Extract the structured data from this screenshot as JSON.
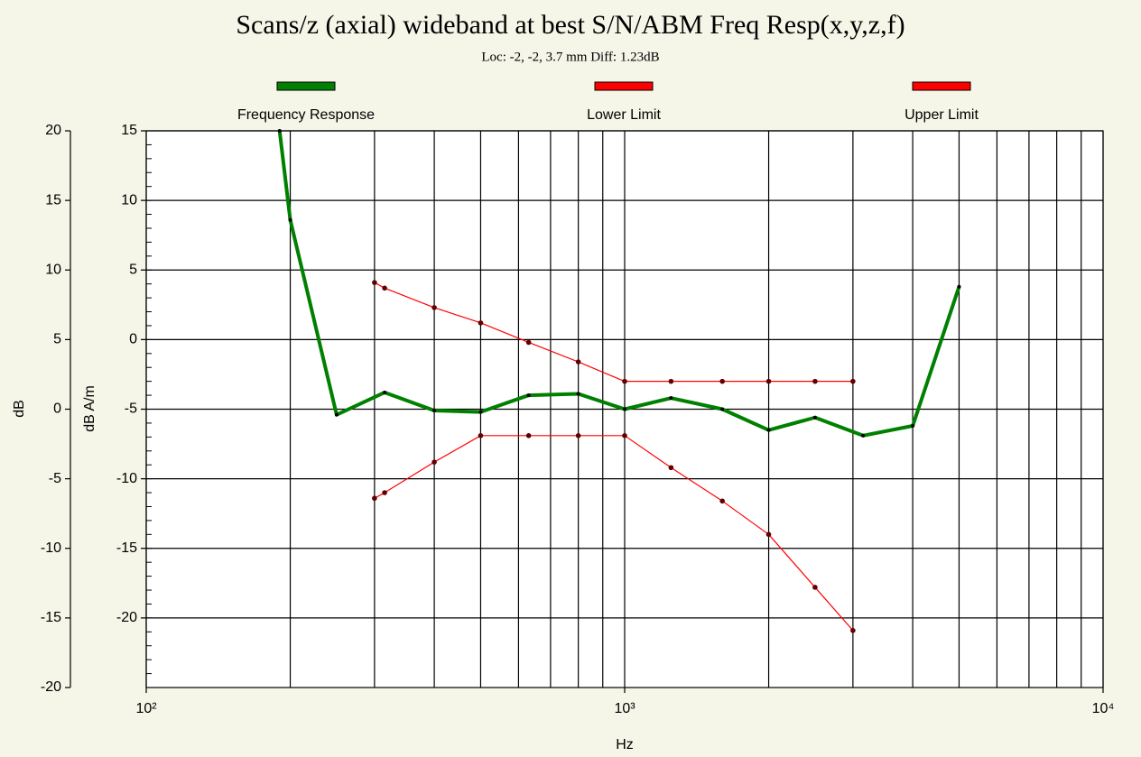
{
  "chart_data": {
    "type": "line",
    "title": "Scans/z (axial) wideband at best S/N/ABM Freq Resp(x,y,z,f)",
    "subtitle": "Loc: -2, -2, 3.7 mm Diff: 1.23dB",
    "xlabel": "Hz",
    "ylabel": "dB",
    "y2label": "dB A/m",
    "log_x": true,
    "grid": true,
    "legend": "top",
    "xlim": [
      100,
      10000
    ],
    "xticks": [
      {
        "value": 100,
        "label": "10²"
      },
      {
        "value": 1000,
        "label": "10³"
      },
      {
        "value": 10000,
        "label": "10⁴"
      }
    ],
    "ylim": [
      -20,
      20
    ],
    "yticks": [
      20,
      15,
      10,
      5,
      0,
      -5,
      -10,
      -15,
      -20
    ],
    "y2lim": [
      -25,
      15
    ],
    "y2ticks": [
      15,
      10,
      5,
      0,
      -5,
      -10,
      -15,
      -20
    ],
    "series": [
      {
        "name": "Frequency Response",
        "color": "#008000",
        "axis": "y2",
        "x": [
          190,
          200,
          250,
          315,
          400,
          500,
          630,
          800,
          1000,
          1250,
          1600,
          2000,
          2500,
          3150,
          4000,
          5000
        ],
        "values": [
          15,
          8.6,
          -5.4,
          -3.8,
          -5.1,
          -5.2,
          -4.0,
          -3.9,
          -5.0,
          -4.2,
          -5.0,
          -6.5,
          -5.6,
          -6.9,
          -6.2,
          3.8
        ]
      },
      {
        "name": "Lower Limit",
        "color": "#ff0000",
        "axis": "y2",
        "x": [
          300,
          315,
          400,
          500,
          630,
          800,
          1000,
          1250,
          1600,
          2000,
          2500,
          3000
        ],
        "values": [
          -11.4,
          -11.0,
          -8.8,
          -6.9,
          -6.9,
          -6.9,
          -6.9,
          -9.2,
          -11.6,
          -14.0,
          -17.8,
          -20.9
        ]
      },
      {
        "name": "Upper Limit",
        "color": "#ff0000",
        "axis": "y2",
        "x": [
          300,
          315,
          400,
          500,
          630,
          800,
          1000,
          1250,
          1600,
          2000,
          2500,
          3000
        ],
        "values": [
          4.1,
          3.7,
          2.3,
          1.2,
          -0.2,
          -1.6,
          -3.0,
          -3.0,
          -3.0,
          -3.0,
          -3.0,
          -3.0
        ]
      }
    ]
  }
}
